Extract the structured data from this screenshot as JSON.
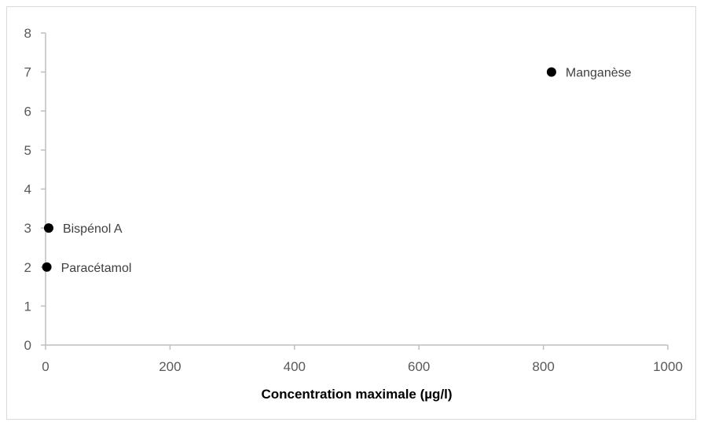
{
  "chart_data": {
    "type": "scatter",
    "title": "",
    "xlabel": "Concentration maximale (µg/l)",
    "ylabel": "",
    "xlim": [
      0,
      1000
    ],
    "ylim": [
      0,
      8
    ],
    "x_ticks": [
      0,
      200,
      400,
      600,
      800,
      1000
    ],
    "y_ticks": [
      0,
      1,
      2,
      3,
      4,
      5,
      6,
      7,
      8
    ],
    "grid": false,
    "legend": "none",
    "marker_color": "#000000",
    "points": [
      {
        "label": "Paracétamol",
        "x": 2,
        "y": 2
      },
      {
        "label": "Bispénol A",
        "x": 5,
        "y": 3
      },
      {
        "label": "Manganèse",
        "x": 813,
        "y": 7
      }
    ]
  }
}
